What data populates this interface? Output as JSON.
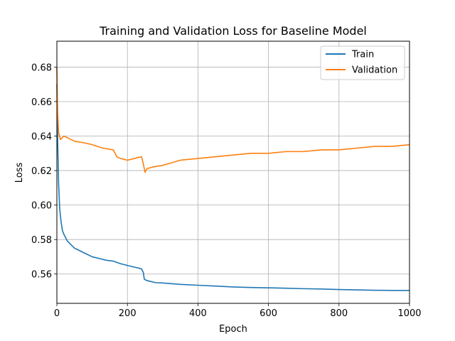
{
  "chart_data": {
    "type": "line",
    "title": "Training and Validation Loss for Baseline Model",
    "xlabel": "Epoch",
    "ylabel": "Loss",
    "xlim": [
      0,
      1000
    ],
    "ylim": [
      0.543,
      0.695
    ],
    "x_ticks": [
      0,
      200,
      400,
      600,
      800,
      1000
    ],
    "y_ticks": [
      0.56,
      0.58,
      0.6,
      0.62,
      0.64,
      0.66,
      0.68
    ],
    "grid": true,
    "legend_position": "top-right",
    "series": [
      {
        "name": "Train",
        "color": "#1f77b4",
        "x": [
          0,
          2,
          5,
          8,
          12,
          16,
          20,
          30,
          40,
          50,
          60,
          80,
          100,
          120,
          140,
          160,
          180,
          200,
          220,
          240,
          245,
          248,
          252,
          260,
          280,
          300,
          350,
          400,
          450,
          500,
          550,
          600,
          650,
          700,
          750,
          800,
          850,
          900,
          950,
          1000
        ],
        "values": [
          0.67,
          0.64,
          0.612,
          0.598,
          0.59,
          0.585,
          0.583,
          0.579,
          0.577,
          0.575,
          0.574,
          0.572,
          0.57,
          0.569,
          0.568,
          0.5675,
          0.566,
          0.565,
          0.564,
          0.563,
          0.561,
          0.557,
          0.5565,
          0.556,
          0.555,
          0.5548,
          0.554,
          0.5535,
          0.553,
          0.5525,
          0.5522,
          0.552,
          0.5518,
          0.5515,
          0.5513,
          0.551,
          0.5508,
          0.5506,
          0.5505,
          0.5505
        ]
      },
      {
        "name": "Validation",
        "color": "#ff7f0e",
        "x": [
          0,
          2,
          5,
          10,
          20,
          30,
          50,
          80,
          100,
          130,
          160,
          170,
          180,
          200,
          220,
          240,
          245,
          250,
          255,
          270,
          300,
          350,
          400,
          450,
          500,
          550,
          600,
          650,
          700,
          750,
          800,
          850,
          900,
          950,
          1000
        ],
        "values": [
          0.68,
          0.655,
          0.642,
          0.638,
          0.64,
          0.639,
          0.637,
          0.636,
          0.635,
          0.633,
          0.632,
          0.628,
          0.627,
          0.626,
          0.627,
          0.628,
          0.624,
          0.619,
          0.621,
          0.622,
          0.623,
          0.626,
          0.627,
          0.628,
          0.629,
          0.63,
          0.63,
          0.631,
          0.631,
          0.632,
          0.632,
          0.633,
          0.634,
          0.634,
          0.635
        ]
      }
    ]
  }
}
